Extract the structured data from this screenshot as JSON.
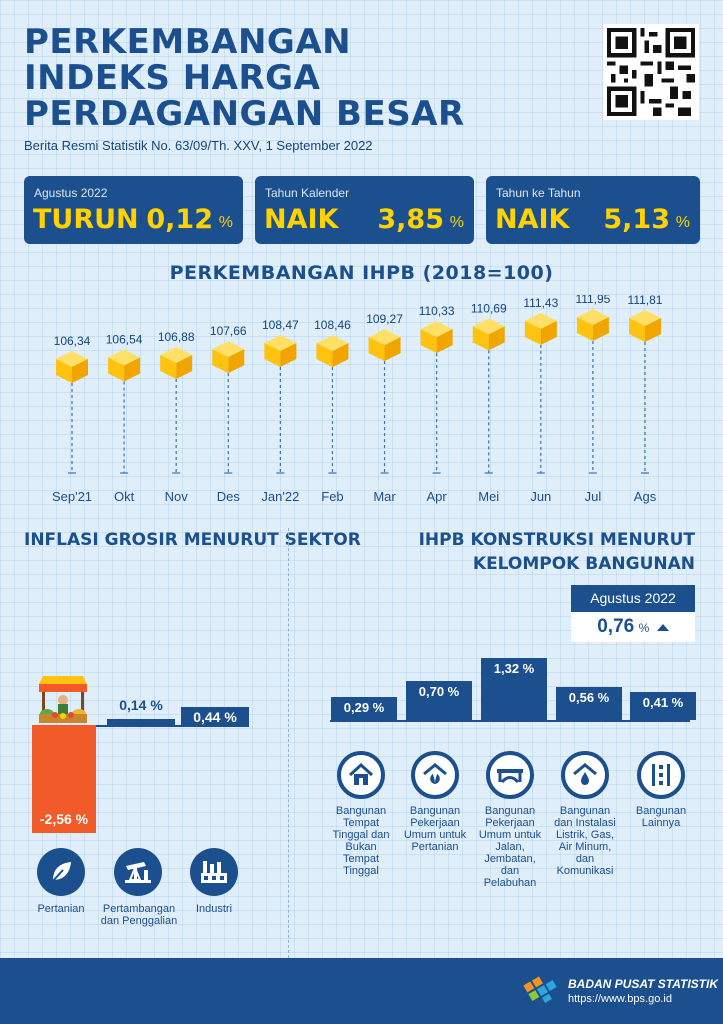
{
  "header": {
    "title": "PERKEMBANGAN INDEKS HARGA PERDAGANGAN BESAR",
    "subtitle": "Berita Resmi Statistik No. 63/09/Th. XXV, 1 September 2022"
  },
  "summary": [
    {
      "label": "Agustus 2022",
      "word": "TURUN",
      "value": "0,12",
      "unit": "%"
    },
    {
      "label": "Tahun Kalender",
      "word": "NAIK",
      "value": "3,85",
      "unit": "%"
    },
    {
      "label": "Tahun ke Tahun",
      "word": "NAIK",
      "value": "5,13",
      "unit": "%"
    }
  ],
  "chart_title": "PERKEMBANGAN IHPB (2018=100)",
  "chart_data": {
    "type": "line",
    "categories": [
      "Sep'21",
      "Okt",
      "Nov",
      "Des",
      "Jan'22",
      "Feb",
      "Mar",
      "Apr",
      "Mei",
      "Jun",
      "Jul",
      "Ags"
    ],
    "values": [
      106.34,
      106.54,
      106.88,
      107.66,
      108.47,
      108.46,
      109.27,
      110.33,
      110.69,
      111.43,
      111.95,
      111.81
    ],
    "value_labels": [
      "106,34",
      "106,54",
      "106,88",
      "107,66",
      "108,47",
      "108,46",
      "109,27",
      "110,33",
      "110,69",
      "111,43",
      "111,95",
      "111,81"
    ],
    "title": "PERKEMBANGAN IHPB (2018=100)",
    "marker_color": "#ffc20e"
  },
  "sector": {
    "title": "INFLASI GROSIR MENURUT SEKTOR",
    "items": [
      {
        "label": "Pertanian",
        "value": "-2,56",
        "unit": "%",
        "num": -2.56,
        "icon": "leaf-icon"
      },
      {
        "label": "Pertambangan dan Penggalian",
        "value": "0,14",
        "unit": "%",
        "num": 0.14,
        "icon": "oil-pump-icon"
      },
      {
        "label": "Industri",
        "value": "0,44",
        "unit": "%",
        "num": 0.44,
        "icon": "factory-icon"
      }
    ],
    "negative_color": "#f15a29"
  },
  "konstruksi": {
    "title": "IHPB KONSTRUKSI MENURUT KELOMPOK BANGUNAN",
    "month_label": "Agustus 2022",
    "month_value": "0,76",
    "month_unit": "%",
    "items": [
      {
        "value": "0,29",
        "unit": "%",
        "num": 0.29,
        "label": "Bangunan Tempat Tinggal dan Bukan Tempat Tinggal",
        "icon": "house-icon"
      },
      {
        "value": "0,70",
        "unit": "%",
        "num": 0.7,
        "label": "Bangunan Pekerjaan Umum untuk Pertanian",
        "icon": "plant-house-icon"
      },
      {
        "value": "1,32",
        "unit": "%",
        "num": 1.32,
        "label": "Bangunan Pekerjaan Umum untuk Jalan, Jembatan, dan Pelabuhan",
        "icon": "bridge-icon"
      },
      {
        "value": "0,56",
        "unit": "%",
        "num": 0.56,
        "label": "Bangunan dan Instalasi Listrik, Gas, Air Minum, dan Komunikasi",
        "icon": "water-house-icon"
      },
      {
        "value": "0,41",
        "unit": "%",
        "num": 0.41,
        "label": "Bangunan Lainnya",
        "icon": "road-icon"
      }
    ]
  },
  "footer": {
    "org": "BADAN PUSAT STATISTIK",
    "url": "https://www.bps.go.id"
  }
}
